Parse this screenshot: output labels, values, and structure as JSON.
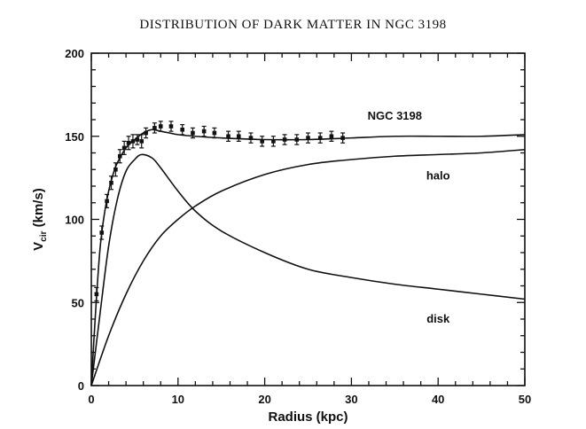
{
  "page_title": "DISTRIBUTION OF DARK MATTER IN NGC 3198",
  "chart_data": {
    "type": "line",
    "title": "DISTRIBUTION OF DARK MATTER IN NGC 3198",
    "xlabel": "Radius  (kpc)",
    "ylabel_main": "V",
    "ylabel_sub": "cir",
    "ylabel_unit": " (km/s)",
    "xlim": [
      0,
      50
    ],
    "ylim": [
      0,
      200
    ],
    "xticks": [
      0,
      10,
      20,
      30,
      40,
      50
    ],
    "yticks": [
      0,
      50,
      100,
      150,
      200
    ],
    "grid": false,
    "annotations": [
      {
        "text": "NGC 3198",
        "x": 35,
        "y": 160
      },
      {
        "text": "halo",
        "x": 40,
        "y": 124
      },
      {
        "text": "disk",
        "x": 40,
        "y": 38
      }
    ],
    "series": [
      {
        "name": "total",
        "x": [
          0,
          0.5,
          1,
          1.5,
          2,
          2.5,
          3,
          4,
          5,
          6,
          7,
          8,
          9,
          10,
          12,
          15,
          20,
          25,
          30,
          35,
          40,
          45,
          50
        ],
        "y": [
          0,
          45,
          82,
          103,
          117,
          127,
          134,
          143,
          148,
          152,
          154,
          153,
          152,
          151,
          150,
          149,
          148,
          148,
          149,
          150,
          150,
          150,
          151
        ]
      },
      {
        "name": "disk",
        "x": [
          0,
          1,
          2,
          3,
          4,
          5,
          5.8,
          7,
          8,
          10,
          12,
          15,
          20,
          25,
          30,
          35,
          40,
          45,
          50
        ],
        "y": [
          0,
          43,
          84,
          112,
          129,
          136,
          139,
          137,
          131,
          117,
          105,
          93,
          80,
          70,
          65,
          61,
          58,
          55,
          52
        ]
      },
      {
        "name": "halo",
        "x": [
          0,
          2,
          4,
          6,
          8,
          10,
          12,
          15,
          20,
          25,
          30,
          35,
          40,
          45,
          50
        ],
        "y": [
          0,
          30,
          55,
          75,
          90,
          100,
          108,
          117,
          127,
          133,
          136,
          138,
          139,
          140,
          142
        ]
      },
      {
        "name": "observed",
        "x": [
          0.6,
          1.2,
          1.8,
          2.3,
          2.8,
          3.3,
          3.8,
          4.3,
          4.8,
          5.3,
          5.8,
          6.3,
          7.3,
          8.0,
          9.2,
          10.5,
          11.7,
          13.0,
          14.2,
          15.8,
          17.0,
          18.4,
          19.7,
          21.0,
          22.3,
          23.7,
          25.0,
          26.4,
          27.7,
          29.0
        ],
        "y": [
          55,
          92,
          111,
          122,
          130,
          138,
          143,
          146,
          147,
          148,
          147,
          152,
          155,
          156,
          156,
          154,
          152,
          153,
          152,
          150,
          150,
          149,
          147,
          147,
          148,
          148,
          149,
          149,
          150,
          149
        ],
        "err": [
          4,
          4,
          4,
          4,
          4,
          4,
          4,
          4,
          4,
          3,
          4,
          3,
          3,
          3,
          3,
          3,
          3,
          3,
          3,
          3,
          3,
          3,
          3,
          3,
          3,
          3,
          3,
          3,
          3,
          3
        ]
      }
    ]
  }
}
